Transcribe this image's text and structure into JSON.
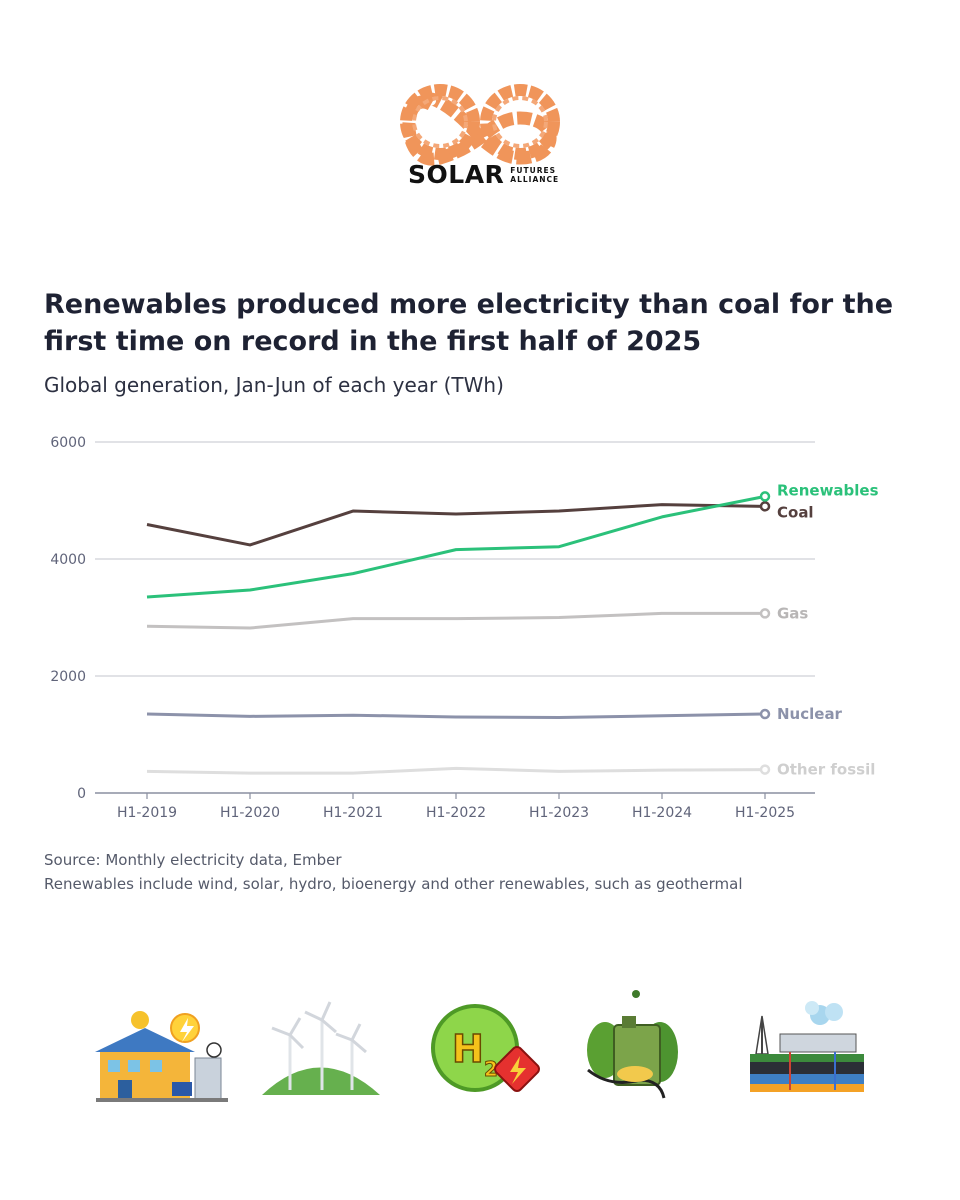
{
  "brand": {
    "name": "SOLAR",
    "tagline_1": "FUTURES",
    "tagline_2": "ALLIANCE"
  },
  "header": {
    "title": "Renewables produced more electricity than coal for the first time on record in the first half of 2025",
    "subtitle": "Global generation, Jan-Jun of each year (TWh)"
  },
  "chart_data": {
    "type": "line",
    "title": "Renewables produced more electricity than coal for the first time on record in the first half of 2025",
    "subtitle": "Global generation, Jan-Jun of each year (TWh)",
    "xlabel": "",
    "ylabel": "",
    "ylim": [
      0,
      6000
    ],
    "yticks": [
      "0",
      "2000",
      "4000",
      "6000"
    ],
    "categories": [
      "H1-2019",
      "H1-2020",
      "H1-2021",
      "H1-2022",
      "H1-2023",
      "H1-2024",
      "H1-2025"
    ],
    "grid": true,
    "legend": "direct labels at line ends (right)",
    "series": [
      {
        "name": "Renewables",
        "color": "#2bc17a",
        "values": [
          3350,
          3470,
          3750,
          4160,
          4210,
          4720,
          5070
        ]
      },
      {
        "name": "Coal",
        "color": "#55403e",
        "values": [
          4590,
          4240,
          4820,
          4770,
          4820,
          4930,
          4900
        ]
      },
      {
        "name": "Gas",
        "color": "#c3c1c1",
        "values": [
          2850,
          2820,
          2980,
          2980,
          3000,
          3070,
          3070
        ]
      },
      {
        "name": "Nuclear",
        "color": "#8c92aa",
        "values": [
          1350,
          1310,
          1330,
          1300,
          1290,
          1320,
          1350
        ]
      },
      {
        "name": "Other fossil",
        "color": "#dedede",
        "values": [
          370,
          340,
          340,
          420,
          370,
          390,
          400
        ]
      }
    ]
  },
  "notes": {
    "source": "Source: Monthly electricity data, Ember",
    "footnote": "Renewables include wind, solar, hydro, bioenergy and other renewables, such as geothermal"
  },
  "icons": [
    "solar-house-icon",
    "wind-turbines-icon",
    "hydrogen-icon",
    "biofuel-icon",
    "geothermal-plant-icon"
  ]
}
